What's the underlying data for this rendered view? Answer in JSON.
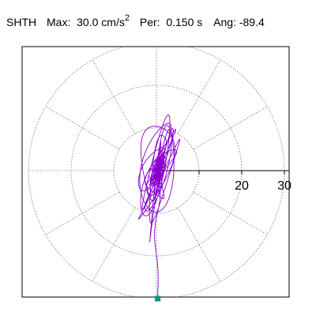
{
  "header": {
    "station": "SHTH",
    "max_label": "Max:",
    "max_value": "30.0 cm/s",
    "max_exp": "2",
    "per_label": "Per:",
    "per_value": "0.150 s",
    "ang_label": "Ang:",
    "ang_value": "-89.4"
  },
  "chart_data": {
    "type": "line",
    "subtype": "polar particle-motion orbit",
    "radial_range": [
      0,
      30
    ],
    "rings": [
      10,
      20,
      30
    ],
    "spokes_every_deg": 30,
    "radial_tick_labels": [
      "20",
      "30"
    ],
    "grid": true,
    "trace_color": "#8800cc",
    "endpoint_color": "#009977",
    "max_amplitude": 30.0,
    "peak_angle_deg": -89.4,
    "endpoint": {
      "x": 0.3,
      "y": -30.0
    }
  }
}
